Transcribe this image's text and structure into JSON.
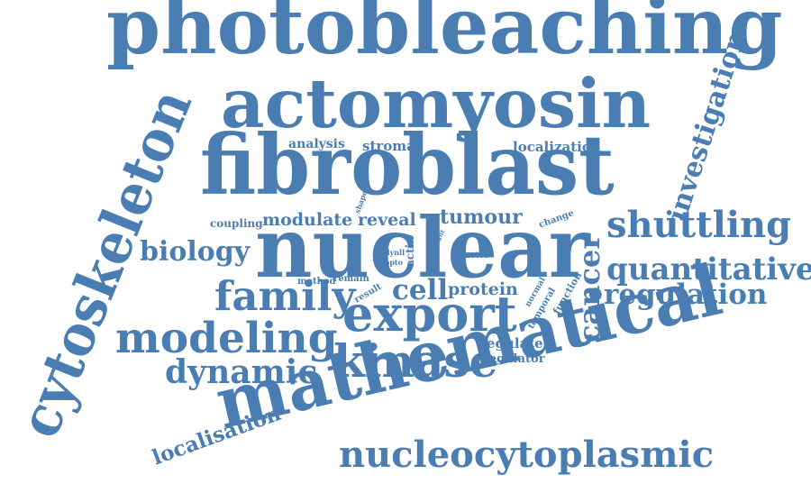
{
  "colors": {
    "word": "#4a7eb3",
    "background": "#ffffff"
  },
  "words": {
    "photobleaching": "photobleaching",
    "actomyosin": "actomyosin",
    "fibroblast": "fibroblast",
    "nuclear": "nuclear",
    "mathematical": "mathematical",
    "cytoskeleton": "cytoskeleton",
    "export": "export",
    "kinase": "kinase",
    "modeling": "modeling",
    "family": "family",
    "nucleocytoplasmic": "nucleocytoplasmic",
    "shuttling": "shuttling",
    "quantitative": "quantitative",
    "regulation": "regulation",
    "investigation": "investigation",
    "cancer": "cancer",
    "dynamic": "dynamic",
    "biology": "biology",
    "localisation": "localisation",
    "cell": "cell",
    "tumour": "tumour",
    "protein": "protein",
    "localization": "localization",
    "analysis": "analysis",
    "stromal": "stromal",
    "modulate": "modulate",
    "reveal": "reveal",
    "coupling": "coupling",
    "regulate": "regulate",
    "regulator": "regulator",
    "change": "change",
    "shape": "shape",
    "method": "method",
    "remain": "remain",
    "result": "result",
    "normal": "normal",
    "temporal": "temporal",
    "function": "function",
    "actin": "actin",
    "dynll": "dynll",
    "opto": "opto",
    "tight": "tight",
    "motor": "motor"
  }
}
